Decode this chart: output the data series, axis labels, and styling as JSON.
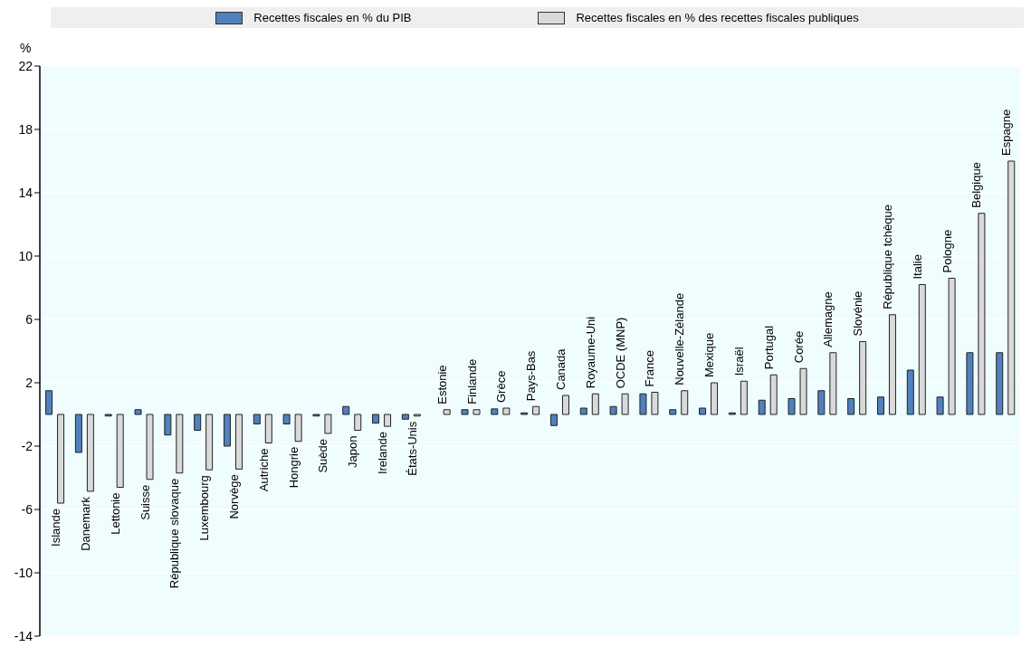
{
  "chart_data": {
    "type": "bar",
    "ylabel": "%",
    "legend": "top",
    "grid": "y",
    "categories": [
      "Islande",
      "Danemark",
      "Lettonie",
      "Suisse",
      "République slovaque",
      "Luxembourg",
      "Norvège",
      "Autriche",
      "Hongrie",
      "Suède",
      "Japon",
      "Irelande",
      "États-Unis",
      "Estonie",
      "Finlande",
      "Grèce",
      "Pays-Bas",
      "Canada",
      "Royaume-Uni",
      "OCDE (MNP)",
      "France",
      "Nouvelle-Zélande",
      "Mexique",
      "Israël",
      "Portugal",
      "Corée",
      "Allemagne",
      "Slovénie",
      "République tchèque",
      "Italie",
      "Pologne",
      "Belgique",
      "Espagne"
    ],
    "series": [
      {
        "name": "Recettes fiscales en % du PIB",
        "color": "#4f81bd",
        "values": [
          1.5,
          -2.4,
          -0.1,
          0.3,
          -1.3,
          -1.0,
          -2.0,
          -0.6,
          -0.6,
          -0.1,
          0.5,
          -0.55,
          -0.3,
          0.0,
          0.3,
          0.35,
          0.1,
          -0.7,
          0.4,
          0.5,
          1.3,
          0.3,
          0.4,
          0.1,
          0.9,
          1.0,
          1.5,
          1.0,
          1.1,
          2.8,
          1.1,
          3.9,
          3.9
        ]
      },
      {
        "name": "Recettes fiscales en % des recettes fiscales publiques",
        "color": "#d9d9d9",
        "values": [
          -5.6,
          -4.85,
          -4.6,
          -4.1,
          -3.7,
          -3.5,
          -3.45,
          -1.8,
          -1.7,
          -1.2,
          -1.0,
          -0.75,
          -0.1,
          0.3,
          0.3,
          0.4,
          0.5,
          1.2,
          1.3,
          1.3,
          1.4,
          1.5,
          2.0,
          2.1,
          2.5,
          2.9,
          3.9,
          4.6,
          6.3,
          8.2,
          8.6,
          12.7,
          16.0
        ]
      }
    ],
    "ylim": [
      -14,
      22
    ],
    "yticks": [
      -14,
      -10,
      -6,
      -2,
      2,
      6,
      10,
      14,
      18,
      22
    ]
  }
}
